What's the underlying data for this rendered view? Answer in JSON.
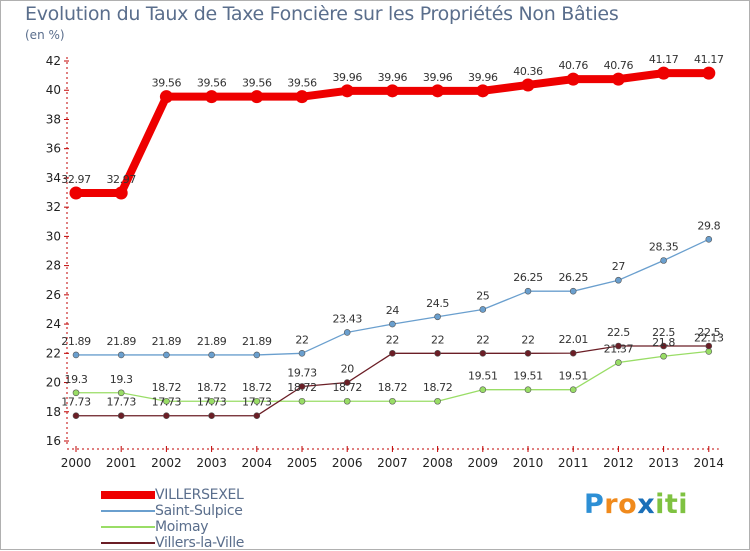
{
  "chart_data": {
    "type": "line",
    "title": "Evolution du Taux de Taxe Foncière sur les Propriétés Non Bâties",
    "ylabel": "(en %)",
    "xlabel": "",
    "ylim": [
      16,
      42
    ],
    "yticks": [
      16,
      18,
      20,
      22,
      24,
      26,
      28,
      30,
      32,
      34,
      36,
      38,
      40,
      42
    ],
    "categories": [
      "2000",
      "2001",
      "2002",
      "2003",
      "2004",
      "2005",
      "2006",
      "2007",
      "2008",
      "2009",
      "2010",
      "2011",
      "2012",
      "2013",
      "2014"
    ],
    "grid": false,
    "legend_position": "bottom-left",
    "series": [
      {
        "name": "VILLERSEXEL",
        "color": "#ee0000",
        "values": [
          32.97,
          32.97,
          39.56,
          39.56,
          39.56,
          39.56,
          39.96,
          39.96,
          39.96,
          39.96,
          40.36,
          40.76,
          40.76,
          41.17,
          41.17
        ],
        "labels": [
          "32.97",
          "32.97",
          "39.56",
          "39.56",
          "39.56",
          "39.56",
          "39.96",
          "39.96",
          "39.96",
          "39.96",
          "40.36",
          "40.76",
          "40.76",
          "41.17",
          "41.17"
        ]
      },
      {
        "name": "Saint-Sulpice",
        "color": "#6a9fce",
        "values": [
          21.89,
          21.89,
          21.89,
          21.89,
          21.89,
          22,
          23.43,
          24,
          24.5,
          25,
          26.25,
          26.25,
          27,
          28.35,
          29.8
        ],
        "labels": [
          "21.89",
          "21.89",
          "21.89",
          "21.89",
          "21.89",
          "22",
          "23.43",
          "24",
          "24.5",
          "25",
          "26.25",
          "26.25",
          "27",
          "28.35",
          "29.8"
        ]
      },
      {
        "name": "Moimay",
        "color": "#99dd66",
        "values": [
          19.3,
          19.3,
          18.72,
          18.72,
          18.72,
          18.72,
          18.72,
          18.72,
          18.72,
          19.51,
          19.51,
          19.51,
          21.37,
          21.8,
          22.13
        ],
        "labels": [
          "19.3",
          "19.3",
          "18.72",
          "18.72",
          "18.72",
          "18.72",
          "18.72",
          "18.72",
          "18.72",
          "19.51",
          "19.51",
          "19.51",
          "21.37",
          "21.8",
          "22.13"
        ]
      },
      {
        "name": "Villers-la-Ville",
        "color": "#6b1e26",
        "values": [
          17.73,
          17.73,
          17.73,
          17.73,
          17.73,
          19.73,
          20,
          22,
          22,
          22,
          22,
          22.01,
          22.5,
          22.5,
          22.5
        ],
        "labels": [
          "17.73",
          "17.73",
          "17.73",
          "17.73",
          "17.73",
          "19.73",
          "20",
          "22",
          "22",
          "22",
          "22",
          "22.01",
          "22.5",
          "22.5",
          "22.5"
        ]
      }
    ]
  },
  "logo": {
    "text": "Proxiti",
    "letters": [
      "P",
      "r",
      "o",
      "x",
      "i",
      "t",
      "i"
    ],
    "letter_colors": [
      "#2d8fd5",
      "#f08a1c",
      "#f08a1c",
      "#1a6fb8",
      "#7fc241",
      "#7fc241",
      "#7fc241"
    ]
  }
}
